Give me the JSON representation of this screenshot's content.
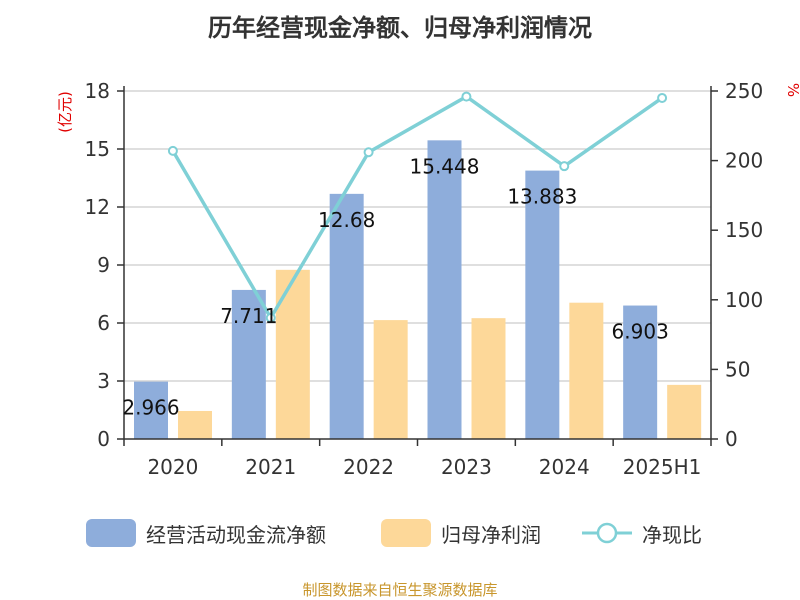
{
  "colors": {
    "bar1": "#8EADDB",
    "bar2": "#FDD899",
    "line": "#7FD0D6",
    "axis": "#333333",
    "grid": "#CCCCCC",
    "unit": "#E00000",
    "source": "#C8962C"
  },
  "source": "制图数据来自恒生聚源数据库",
  "chart_data": {
    "type": "bar",
    "title": "历年经营现金净额、归母净利润情况",
    "categories": [
      "2020",
      "2021",
      "2022",
      "2023",
      "2024",
      "2025H1"
    ],
    "y_left": {
      "label": "(亿元)",
      "min": 0,
      "max": 18,
      "ticks": [
        "0",
        "3",
        "6",
        "9",
        "12",
        "15",
        "18"
      ]
    },
    "y_right": {
      "label": "%",
      "min": 0,
      "max": 250,
      "ticks": [
        "0",
        "50",
        "100",
        "150",
        "200",
        "250"
      ]
    },
    "grid": true,
    "legend_position": "bottom",
    "series": [
      {
        "name": "经营活动现金流净额",
        "type": "bar",
        "axis": "left",
        "values": [
          2.966,
          7.711,
          12.68,
          15.448,
          13.883,
          6.903
        ],
        "labels": [
          "2.966",
          "7.711",
          "12.68",
          "15.448",
          "13.883",
          "6.903"
        ]
      },
      {
        "name": "归母净利润",
        "type": "bar",
        "axis": "left",
        "values": [
          1.45,
          8.75,
          6.15,
          6.25,
          7.05,
          2.8
        ]
      },
      {
        "name": "净现比",
        "type": "line",
        "axis": "right",
        "values": [
          207,
          87,
          206,
          246,
          196,
          245
        ]
      }
    ]
  }
}
